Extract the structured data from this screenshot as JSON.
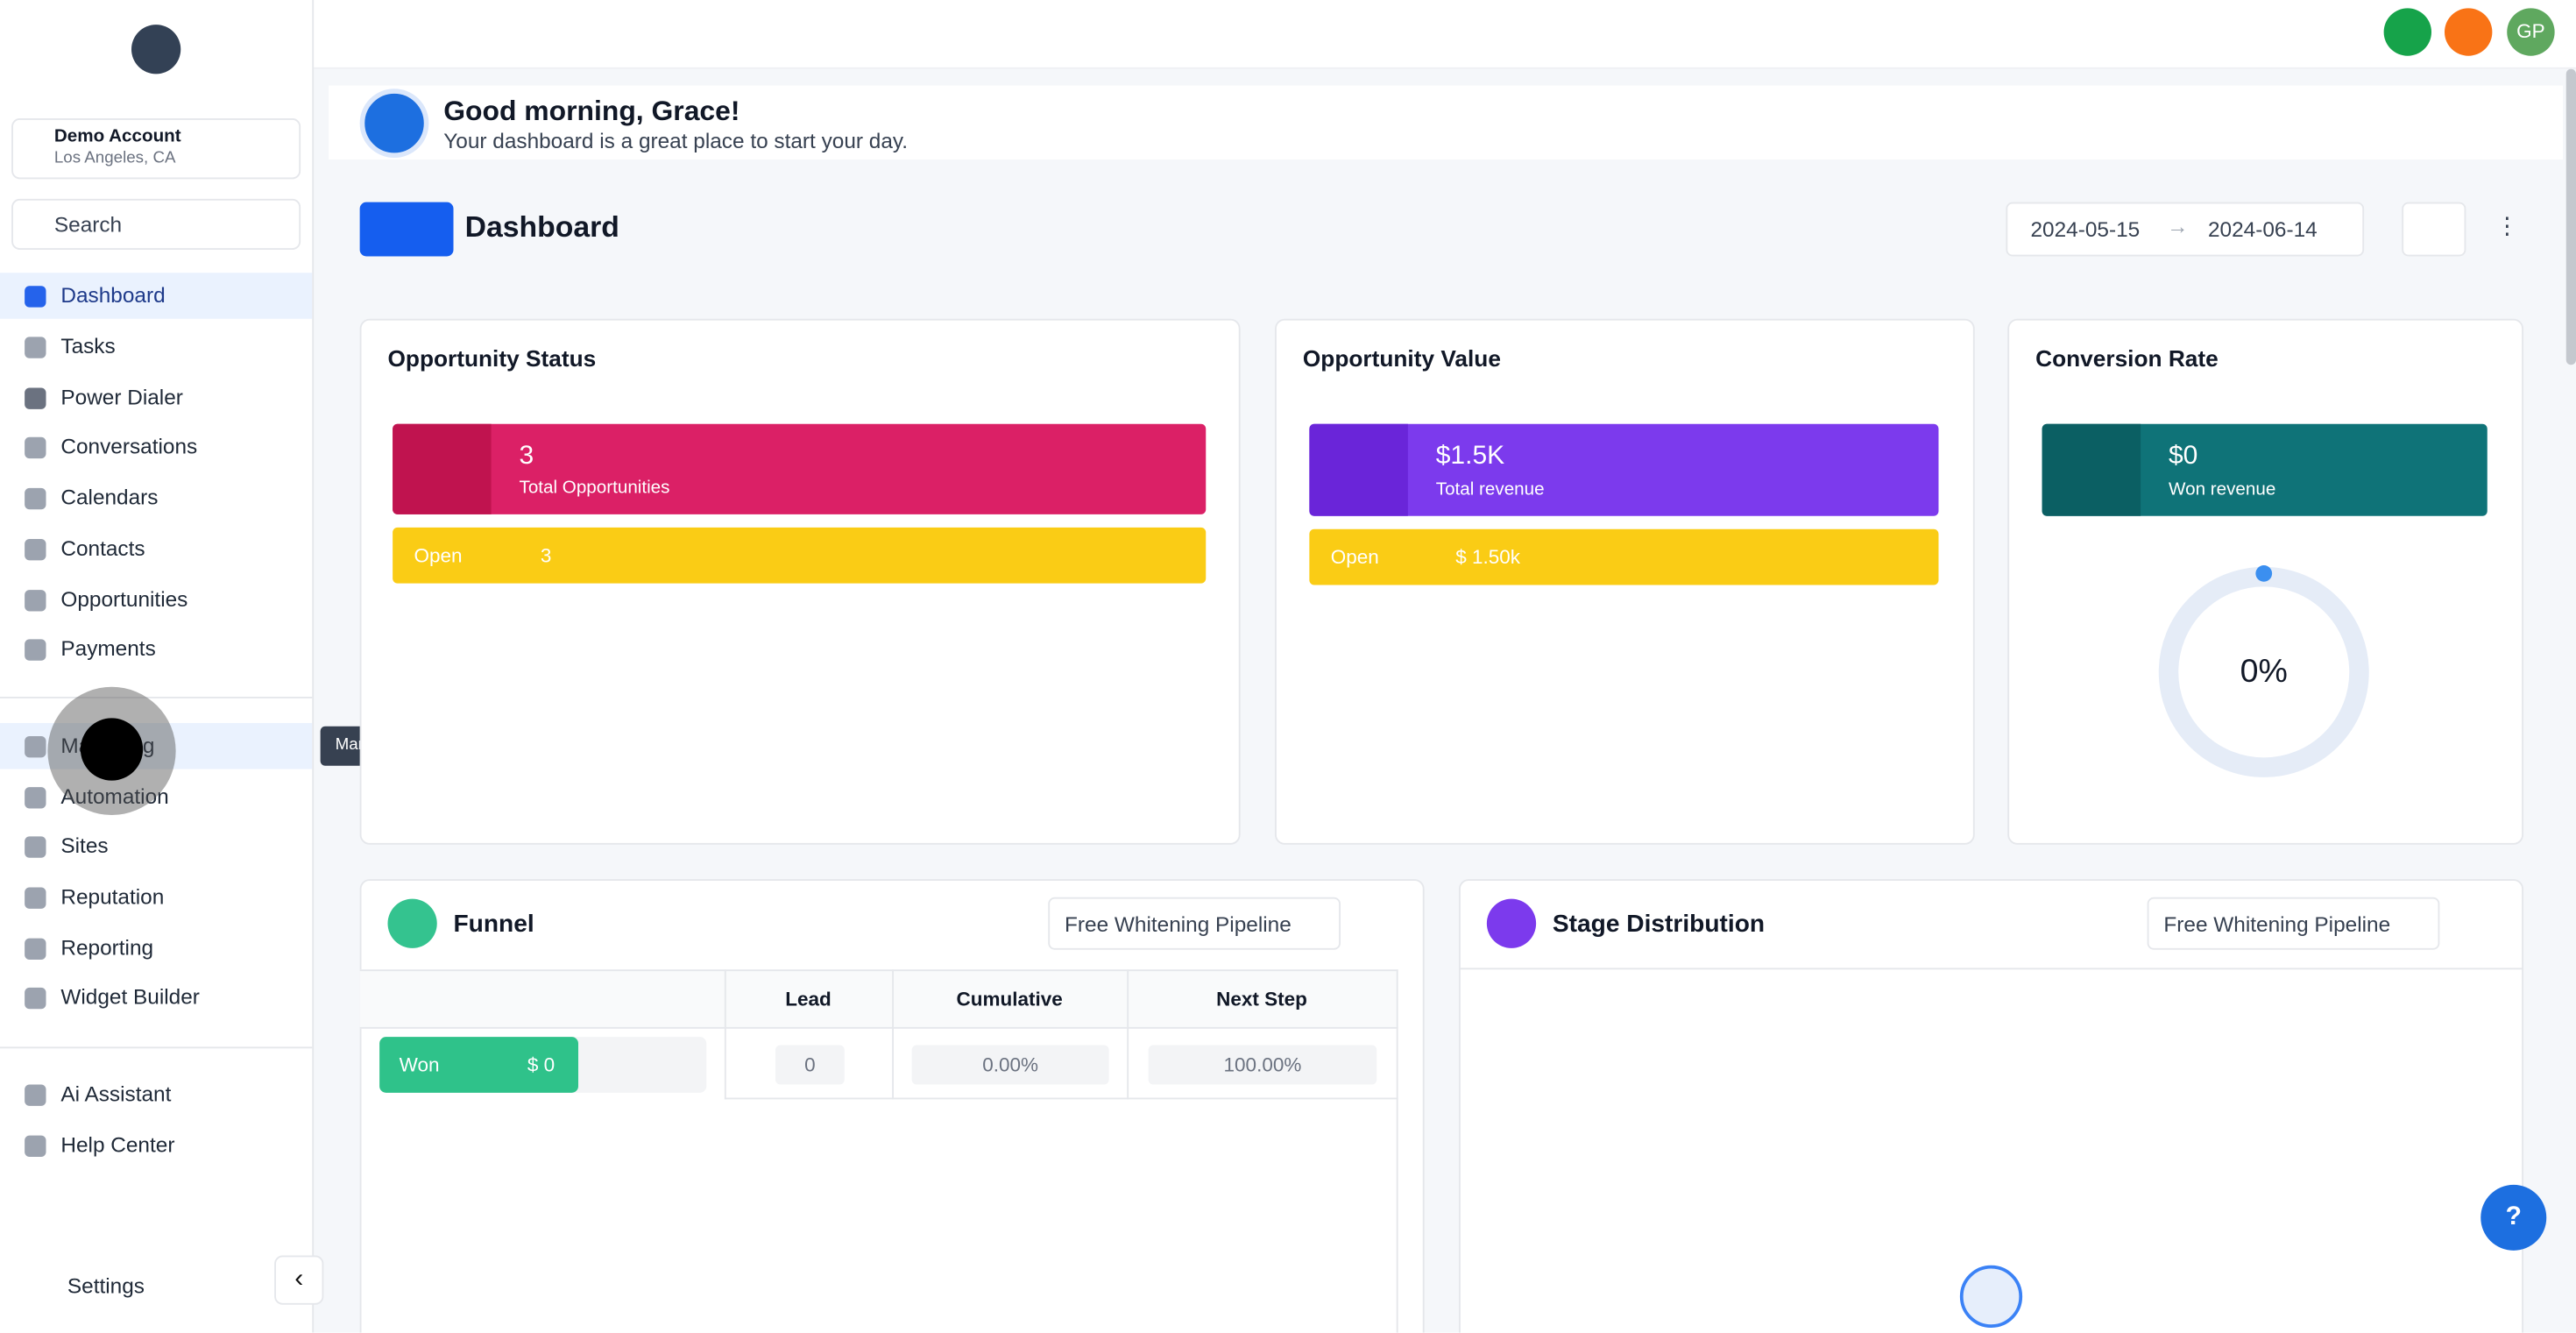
{
  "sidebar": {
    "account": {
      "name": "Demo Account",
      "location": "Los Angeles, CA"
    },
    "search": "Search",
    "nav": [
      "Dashboard",
      "Tasks",
      "Power Dialer",
      "Conversations",
      "Calendars",
      "Contacts",
      "Opportunities",
      "Payments"
    ],
    "nav2": [
      "Marketing",
      "Automation",
      "Sites",
      "Reputation",
      "Reporting",
      "Widget Builder"
    ],
    "nav3": [
      "Ai Assistant",
      "Help Center"
    ],
    "settings": "Settings",
    "tooltip": "Marketing"
  },
  "header": {
    "avatar": "GP"
  },
  "greeting": {
    "title": "Good morning, Grace!",
    "subtitle": "Your dashboard is a great place to start your day."
  },
  "dashboard": {
    "title": "Dashboard",
    "date_start": "2024-05-15",
    "date_end": "2024-06-14"
  },
  "widgets": {
    "opportunity_status": {
      "title": "Opportunity Status",
      "value": "3",
      "label": "Total Opportunities",
      "row_label": "Open",
      "row_value": "3"
    },
    "opportunity_value": {
      "title": "Opportunity Value",
      "value": "$1.5K",
      "label": "Total revenue",
      "row_label": "Open",
      "row_value": "$ 1.50k"
    },
    "conversion_rate": {
      "title": "Conversion Rate",
      "value": "$0",
      "label": "Won revenue",
      "percent": "0%"
    },
    "funnel": {
      "title": "Funnel",
      "pipeline": "Free Whitening Pipeline",
      "columns": [
        "Lead",
        "Cumulative",
        "Next Step"
      ],
      "row": {
        "stage": "Won",
        "amount": "$ 0",
        "lead": "0",
        "cumulative": "0.00%",
        "next_step": "100.00%"
      }
    },
    "stage_distribution": {
      "title": "Stage Distribution",
      "pipeline": "Free Whitening Pipeline"
    }
  }
}
